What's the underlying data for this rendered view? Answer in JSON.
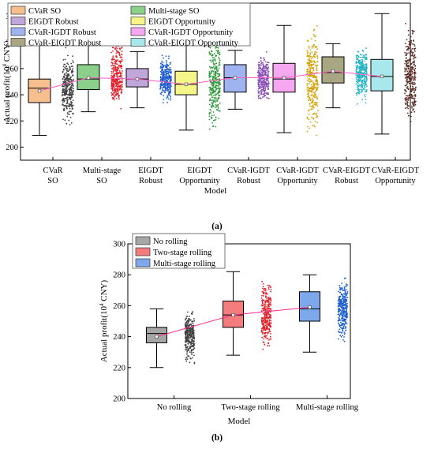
{
  "chart_data": [
    {
      "type": "box",
      "panel_label": "(a)",
      "xlabel": "Model",
      "ylabel_main": "Actual profit(10",
      "ylabel_sup": "4",
      "ylabel_tail": " CNY)",
      "ylim": [
        190,
        310
      ],
      "yticks": [
        "200",
        "220",
        "240",
        "260",
        "280",
        "300"
      ],
      "categories": [
        [
          "CVaR",
          "SO"
        ],
        [
          "Multi-stage",
          "SO"
        ],
        [
          "EIGDT",
          "Robust"
        ],
        [
          "EIGDT",
          "Opportunity"
        ],
        [
          "CVaR-IGDT",
          "Robust"
        ],
        [
          "CVaR-IGDT",
          "Opportunity"
        ],
        [
          "CVaR-EIGDT",
          "Robust"
        ],
        [
          "CVaR-EIGDT",
          "Opportunity"
        ]
      ],
      "legend": [
        "CVaR SO",
        "Multi-stage SO",
        "EIGDT Robust",
        "EIGDT Opportunity",
        "CVaR-IGDT Robust",
        "CVaR-IGDT Opportunity",
        "CVaR-EIGDT Robust",
        "CVaR-EIGDT Opportunity"
      ],
      "series": [
        {
          "name": "CVaR SO",
          "box_color": "#f7be8e",
          "scatter_color": "#404040",
          "whisker_low": 209,
          "q1": 234,
          "median": 245,
          "q3": 252,
          "whisker_high": 280,
          "mean": 243,
          "scatter_range": [
            215,
            279
          ]
        },
        {
          "name": "Multi-stage SO",
          "box_color": "#8ccf8a",
          "scatter_color": "#e0202a",
          "whisker_low": 227,
          "q1": 244,
          "median": 252,
          "q3": 263,
          "whisker_high": 289,
          "mean": 253,
          "scatter_range": [
            228,
            288
          ]
        },
        {
          "name": "EIGDT Robust",
          "box_color": "#c0a6da",
          "scatter_color": "#1f5fd0",
          "whisker_low": 230,
          "q1": 246,
          "median": 252,
          "q3": 260,
          "whisker_high": 273,
          "mean": 252,
          "scatter_range": [
            230,
            273
          ]
        },
        {
          "name": "EIGDT Opportunity",
          "box_color": "#f5f58a",
          "scatter_color": "#2e9a3a",
          "whisker_low": 213,
          "q1": 240,
          "median": 248,
          "q3": 258,
          "whisker_high": 285,
          "mean": 248,
          "scatter_range": [
            206,
            293
          ]
        },
        {
          "name": "CVaR-IGDT Robust",
          "box_color": "#9fb3f0",
          "scatter_color": "#8a4fb8",
          "whisker_low": 229,
          "q1": 242,
          "median": 253,
          "q3": 263,
          "whisker_high": 274,
          "mean": 253,
          "scatter_range": [
            229,
            274
          ]
        },
        {
          "name": "CVaR-IGDT Opportunity",
          "box_color": "#f5a8f0",
          "scatter_color": "#d4a000",
          "whisker_low": 211,
          "q1": 242,
          "median": 252,
          "q3": 264,
          "whisker_high": 293,
          "mean": 253,
          "scatter_range": [
            200,
            298
          ]
        },
        {
          "name": "CVaR-EIGDT Robust",
          "box_color": "#a9a683",
          "scatter_color": "#20b4c4",
          "whisker_low": 230,
          "q1": 249,
          "median": 257,
          "q3": 269,
          "whisker_high": 279,
          "mean": 258,
          "scatter_range": [
            231,
            279
          ]
        },
        {
          "name": "CVaR-EIGDT Opportunity",
          "box_color": "#a8e8ec",
          "scatter_color": "#5a2a22",
          "whisker_low": 210,
          "q1": 243,
          "median": 254,
          "q3": 267,
          "whisker_high": 302,
          "mean": 254,
          "scatter_range": [
            211,
            300
          ]
        }
      ],
      "mean_line_color": "#ff5cc0"
    },
    {
      "type": "box",
      "panel_label": "(b)",
      "xlabel": "Model",
      "ylabel_main": "Actual profit(10",
      "ylabel_sup": "4",
      "ylabel_tail": " CNY)",
      "ylim": [
        200,
        300
      ],
      "yticks": [
        "200",
        "220",
        "240",
        "260",
        "280",
        "300"
      ],
      "categories": [
        "No rolling",
        "Two-stage rolling",
        "Multi-stage rolling"
      ],
      "legend": [
        "No rolling",
        "Two-stage rolling",
        "Multi-stage rolling"
      ],
      "series": [
        {
          "name": "No rolling",
          "box_color": "#a6a6a6",
          "scatter_color": "#404040",
          "whisker_low": 220,
          "q1": 236,
          "median": 242,
          "q3": 246,
          "whisker_high": 258,
          "mean": 240,
          "scatter_range": [
            219,
            258
          ]
        },
        {
          "name": "Two-stage rolling",
          "box_color": "#f47c7c",
          "scatter_color": "#e0202a",
          "whisker_low": 228,
          "q1": 246,
          "median": 254,
          "q3": 263,
          "whisker_high": 282,
          "mean": 254,
          "scatter_range": [
            228,
            282
          ]
        },
        {
          "name": "Multi-stage rolling",
          "box_color": "#7ea8ec",
          "scatter_color": "#1f5fd0",
          "whisker_low": 230,
          "q1": 250,
          "median": 258,
          "q3": 269,
          "whisker_high": 280,
          "mean": 259,
          "scatter_range": [
            230,
            280
          ]
        }
      ],
      "mean_line_color": "#ff2a8a"
    }
  ]
}
